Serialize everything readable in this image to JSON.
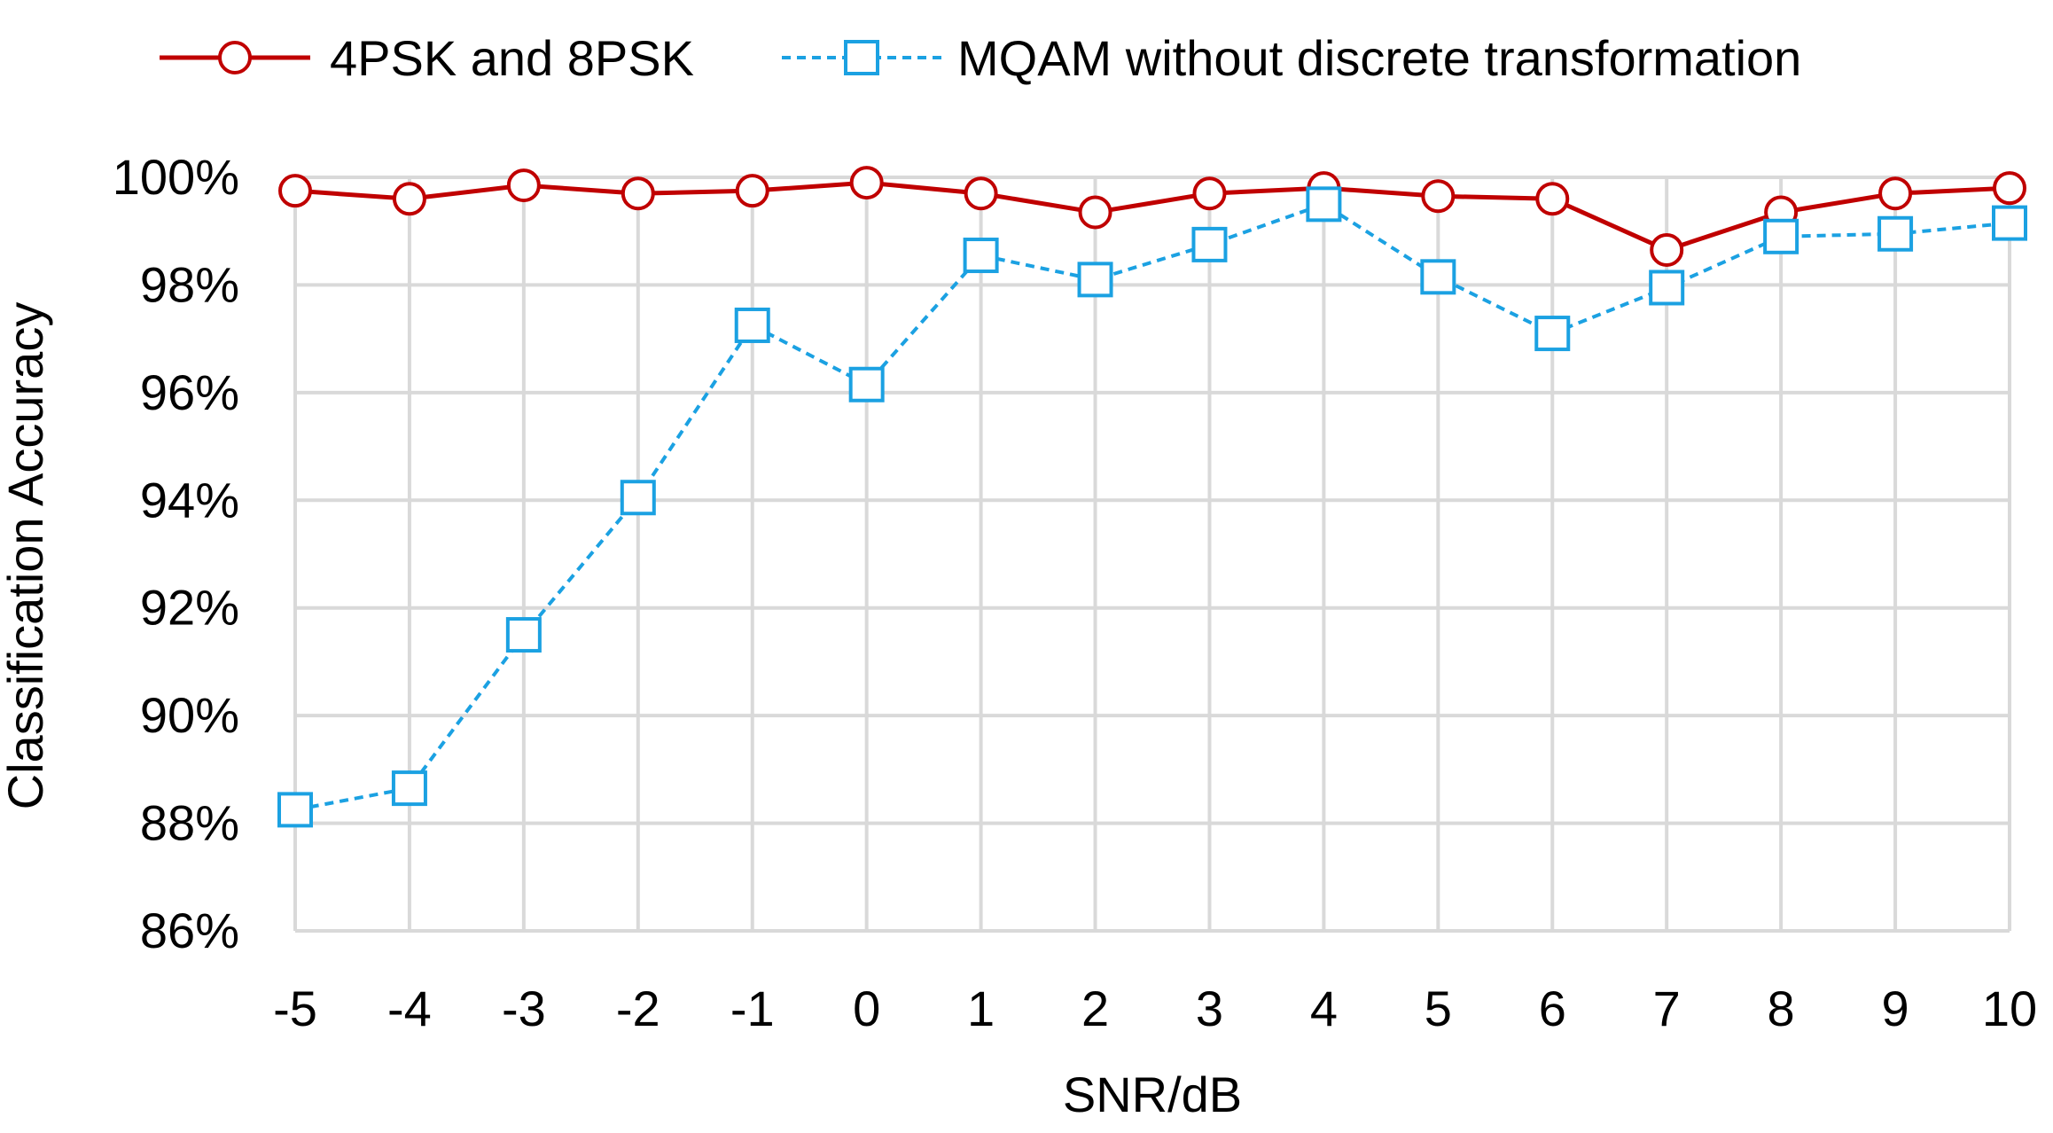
{
  "chart_data": {
    "type": "line",
    "title": "",
    "xlabel": "SNR/dB",
    "ylabel": "Classification Accuracy",
    "x": [
      -5,
      -4,
      -3,
      -2,
      -1,
      0,
      1,
      2,
      3,
      4,
      5,
      6,
      7,
      8,
      9,
      10
    ],
    "x_tick_labels": [
      "-5",
      "-4",
      "-3",
      "-2",
      "-1",
      "0",
      "1",
      "2",
      "3",
      "4",
      "5",
      "6",
      "7",
      "8",
      "9",
      "10"
    ],
    "y_ticks": [
      86,
      88,
      90,
      92,
      94,
      96,
      98,
      100
    ],
    "y_tick_labels": [
      "86%",
      "88%",
      "90%",
      "92%",
      "94%",
      "96%",
      "98%",
      "100%"
    ],
    "ylim": [
      86,
      100
    ],
    "grid": true,
    "legend_position": "top",
    "series": [
      {
        "name": "4PSK and 8PSK",
        "color": "#c00000",
        "line_style": "solid",
        "marker": "circle",
        "values": [
          99.75,
          99.6,
          99.85,
          99.7,
          99.75,
          99.9,
          99.7,
          99.35,
          99.7,
          99.8,
          99.65,
          99.6,
          98.65,
          99.35,
          99.7,
          99.8
        ]
      },
      {
        "name": "MQAM without discrete transformation",
        "color": "#1ba1e2",
        "line_style": "dashed",
        "marker": "square",
        "values": [
          88.25,
          88.65,
          91.5,
          94.05,
          97.25,
          96.15,
          98.55,
          98.1,
          98.75,
          99.5,
          98.15,
          97.1,
          97.95,
          98.9,
          98.95,
          99.15
        ]
      }
    ]
  }
}
